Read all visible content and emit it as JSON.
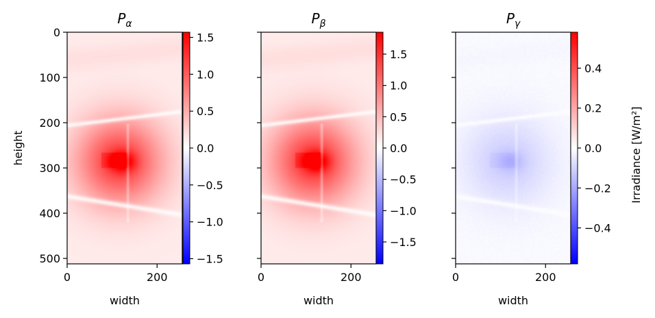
{
  "chart_data": [
    {
      "type": "heatmap",
      "title": {
        "main": "P",
        "sub": "α"
      },
      "xlabel": "width",
      "ylabel": "height",
      "x_range": [
        0,
        256
      ],
      "y_range": [
        0,
        512
      ],
      "x_ticks": [
        {
          "v": 0,
          "label": "0"
        },
        {
          "v": 200,
          "label": "200"
        }
      ],
      "y_ticks": [
        {
          "v": 0,
          "label": "0"
        },
        {
          "v": 100,
          "label": "100"
        },
        {
          "v": 200,
          "label": "200"
        },
        {
          "v": 300,
          "label": "300"
        },
        {
          "v": 400,
          "label": "400"
        },
        {
          "v": 500,
          "label": "500"
        }
      ],
      "show_y_tick_labels": true,
      "colormap": "bwr",
      "colorbar": {
        "range": [
          -1.57,
          1.57
        ],
        "ticks": [
          {
            "v": 1.5,
            "label": "1.5"
          },
          {
            "v": 1.0,
            "label": "1.0"
          },
          {
            "v": 0.5,
            "label": "0.5"
          },
          {
            "v": 0.0,
            "label": "0.0"
          },
          {
            "v": -0.5,
            "label": "−0.5"
          },
          {
            "v": -1.0,
            "label": "−1.0"
          },
          {
            "v": -1.5,
            "label": "−1.5"
          }
        ],
        "label": ""
      },
      "field": {
        "peak": 1.5,
        "sign": 1
      }
    },
    {
      "type": "heatmap",
      "title": {
        "main": "P",
        "sub": "β"
      },
      "xlabel": "width",
      "ylabel": "",
      "x_range": [
        0,
        256
      ],
      "y_range": [
        0,
        512
      ],
      "x_ticks": [
        {
          "v": 0,
          "label": "0"
        },
        {
          "v": 200,
          "label": "200"
        }
      ],
      "y_ticks": [
        {
          "v": 0,
          "label": ""
        },
        {
          "v": 100,
          "label": ""
        },
        {
          "v": 200,
          "label": ""
        },
        {
          "v": 300,
          "label": ""
        },
        {
          "v": 400,
          "label": ""
        },
        {
          "v": 500,
          "label": ""
        }
      ],
      "show_y_tick_labels": false,
      "colormap": "bwr",
      "colorbar": {
        "range": [
          -1.85,
          1.85
        ],
        "ticks": [
          {
            "v": 1.5,
            "label": "1.5"
          },
          {
            "v": 1.0,
            "label": "1.0"
          },
          {
            "v": 0.5,
            "label": "0.5"
          },
          {
            "v": 0.0,
            "label": "0.0"
          },
          {
            "v": -0.5,
            "label": "−0.5"
          },
          {
            "v": -1.0,
            "label": "−1.0"
          },
          {
            "v": -1.5,
            "label": "−1.5"
          }
        ],
        "label": ""
      },
      "field": {
        "peak": 1.8,
        "sign": 1
      }
    },
    {
      "type": "heatmap",
      "title": {
        "main": "P",
        "sub": "γ"
      },
      "xlabel": "width",
      "ylabel": "",
      "x_range": [
        0,
        256
      ],
      "y_range": [
        0,
        512
      ],
      "x_ticks": [
        {
          "v": 0,
          "label": "0"
        },
        {
          "v": 200,
          "label": "200"
        }
      ],
      "y_ticks": [
        {
          "v": 0,
          "label": ""
        },
        {
          "v": 100,
          "label": ""
        },
        {
          "v": 200,
          "label": ""
        },
        {
          "v": 300,
          "label": ""
        },
        {
          "v": 400,
          "label": ""
        },
        {
          "v": 500,
          "label": ""
        }
      ],
      "show_y_tick_labels": false,
      "colormap": "bwr",
      "colorbar": {
        "range": [
          -0.58,
          0.58
        ],
        "ticks": [
          {
            "v": 0.4,
            "label": "0.4"
          },
          {
            "v": 0.2,
            "label": "0.2"
          },
          {
            "v": 0.0,
            "label": "0.0"
          },
          {
            "v": -0.2,
            "label": "−0.2"
          },
          {
            "v": -0.4,
            "label": "−0.4"
          }
        ],
        "label": "Irradiance [W/m²]"
      },
      "field": {
        "peak": -0.2,
        "sign": -1
      }
    }
  ]
}
